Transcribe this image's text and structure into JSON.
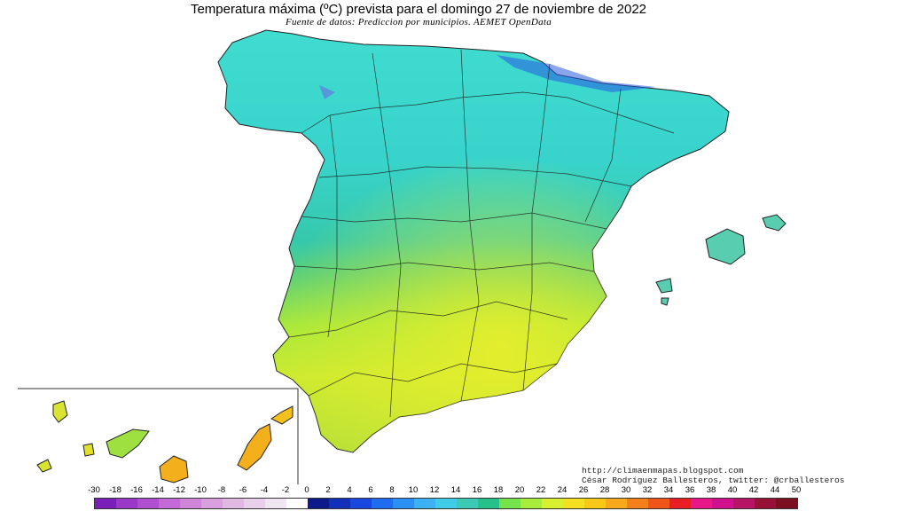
{
  "map": {
    "title": "Temperatura máxima (ºC) prevista para el domingo 27 de noviembre de 2022",
    "subtitle": "Fuente de datos: Prediccion por municipios. AEMET OpenData",
    "credit_url": "http://climaenmapas.blogspot.com",
    "credit_author": "César Rodríguez Ballesteros, twitter: @crballesteros",
    "regions": [
      "peninsula-iberica",
      "islas-baleares",
      "islas-canarias"
    ]
  },
  "legend": {
    "labels": [
      "-30",
      "-18",
      "-16",
      "-14",
      "-12",
      "-10",
      "-8",
      "-6",
      "-4",
      "-2",
      "0",
      "2",
      "4",
      "6",
      "8",
      "10",
      "12",
      "14",
      "16",
      "18",
      "20",
      "22",
      "24",
      "26",
      "28",
      "30",
      "32",
      "34",
      "36",
      "38",
      "40",
      "42",
      "44",
      "50"
    ],
    "colors": [
      "#7a1fb8",
      "#9a38c8",
      "#b04fd0",
      "#c46ad6",
      "#cf86d8",
      "#d8a0dc",
      "#e0b8e2",
      "#e8d0ea",
      "#f0e6f2",
      "#ffffff",
      "#0c1a8a",
      "#1230b8",
      "#1848e0",
      "#1e6cf0",
      "#2a90f4",
      "#3cb2f4",
      "#40cce8",
      "#3ccab4",
      "#26c08a",
      "#74e44a",
      "#a8ec3c",
      "#d8f030",
      "#f4e020",
      "#f8c818",
      "#f8a81a",
      "#f4801c",
      "#f05418",
      "#e81e24",
      "#e8188a",
      "#d0108c",
      "#b81466",
      "#981238",
      "#7c1020"
    ]
  }
}
